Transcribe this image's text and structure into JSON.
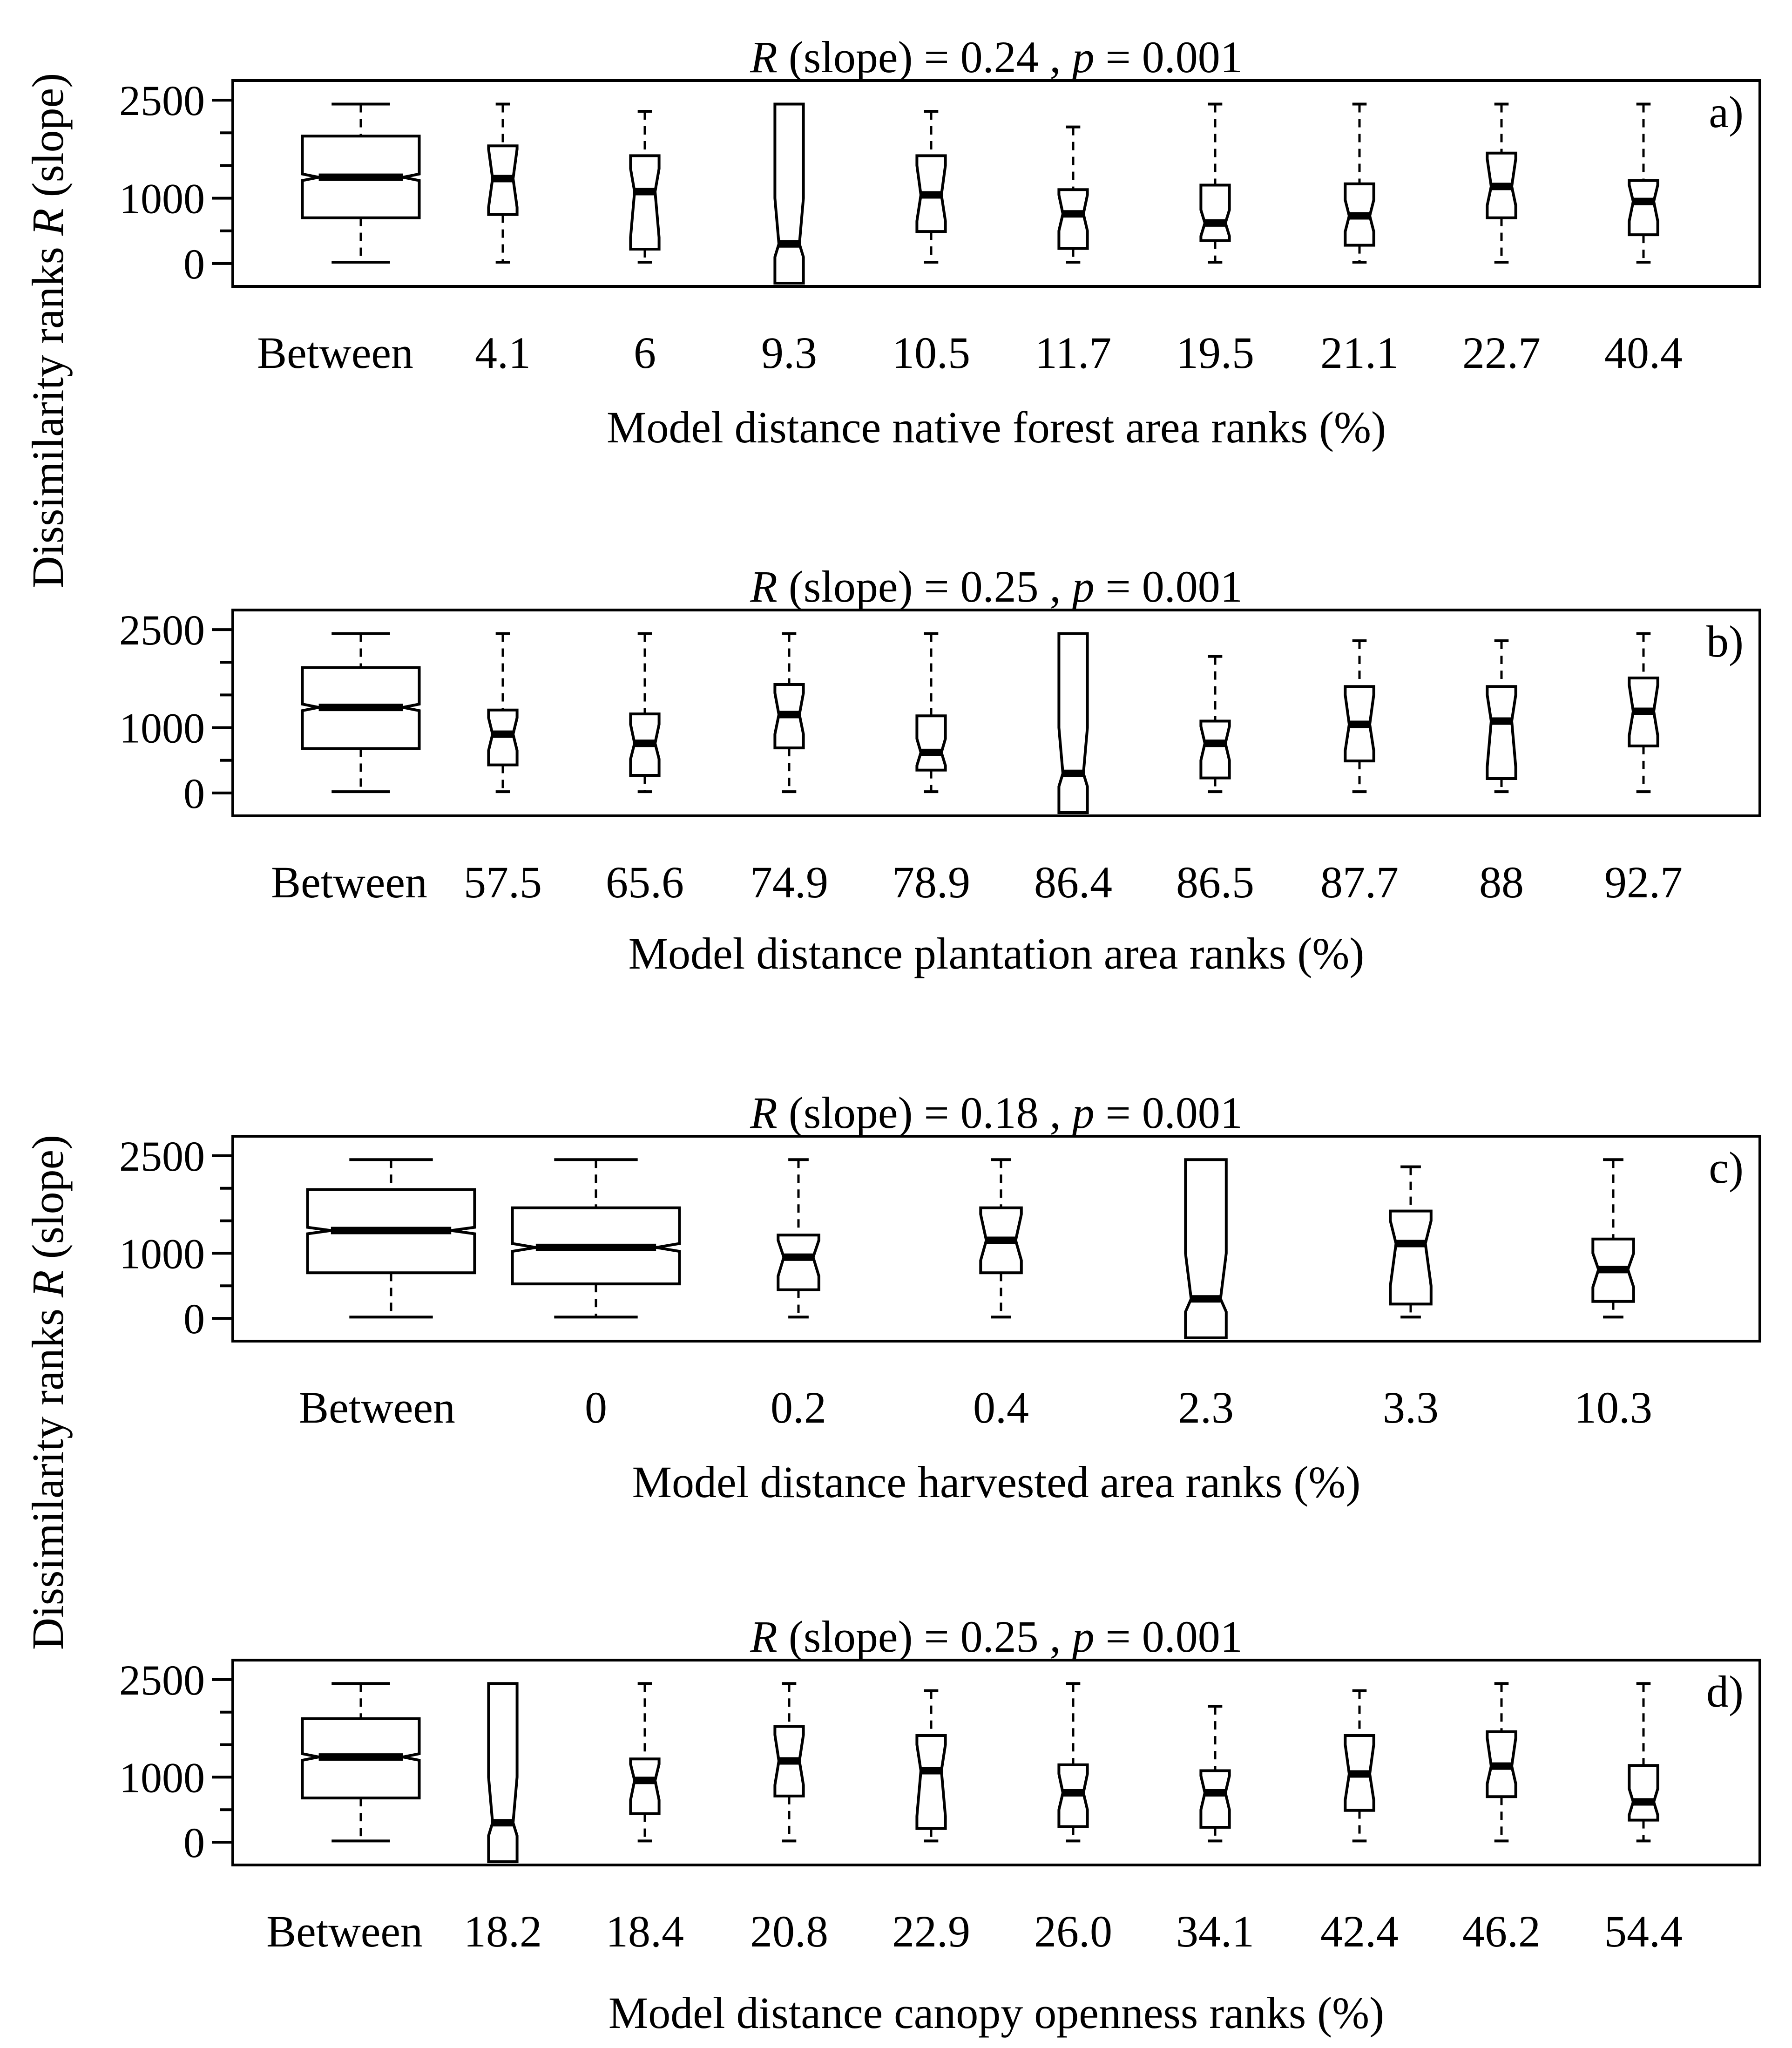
{
  "figure": {
    "ylabel_top_prefix": "Dissimilarity ranks ",
    "ylabel_top_italic": "R",
    "ylabel_top_suffix": " (slope)",
    "ylabel_bottom_prefix": "Dissimilarity ranks ",
    "ylabel_bottom_italic": "R",
    "ylabel_bottom_suffix": " (slope)"
  },
  "chart_data": [
    {
      "type": "box",
      "panel_label": "a)",
      "title_r": "R",
      "title_mid": " (slope) =  0.24 ,  ",
      "title_p": "p",
      "title_end": " =  0.001",
      "xlabel": "Model distance native forest area ranks (%)",
      "ylim": [
        -350,
        2800
      ],
      "yticks": [
        0,
        1000,
        2500
      ],
      "minor_yticks": [
        500,
        1500,
        2000
      ],
      "categories": [
        "Between",
        "4.1",
        "6",
        "9.3",
        "10.5",
        "11.7",
        "19.5",
        "21.1",
        "22.7",
        "40.4"
      ],
      "boxes": [
        {
          "min": 20,
          "q1": 700,
          "median": 1320,
          "q3": 1950,
          "max": 2440,
          "notch_lo": 1270,
          "notch_hi": 1370
        },
        {
          "min": 20,
          "q1": 750,
          "median": 1300,
          "q3": 1800,
          "max": 2440,
          "notch_lo": 860,
          "notch_hi": 1750
        },
        {
          "min": 20,
          "q1": 220,
          "median": 1100,
          "q3": 1650,
          "max": 2330,
          "notch_lo": 400,
          "notch_hi": 1450
        },
        {
          "min": -300,
          "q1": -300,
          "median": 300,
          "q3": 2440,
          "max": 2440,
          "notch_lo": 100,
          "notch_hi": 1000
        },
        {
          "min": 20,
          "q1": 490,
          "median": 1050,
          "q3": 1650,
          "max": 2330,
          "notch_lo": 650,
          "notch_hi": 1500
        },
        {
          "min": 20,
          "q1": 230,
          "median": 760,
          "q3": 1130,
          "max": 2090,
          "notch_lo": 500,
          "notch_hi": 1050
        },
        {
          "min": 20,
          "q1": 350,
          "median": 620,
          "q3": 1200,
          "max": 2440,
          "notch_lo": 420,
          "notch_hi": 820
        },
        {
          "min": 20,
          "q1": 280,
          "median": 730,
          "q3": 1220,
          "max": 2440,
          "notch_lo": 490,
          "notch_hi": 970
        },
        {
          "min": 20,
          "q1": 700,
          "median": 1180,
          "q3": 1690,
          "max": 2440,
          "notch_lo": 890,
          "notch_hi": 1600
        },
        {
          "min": 20,
          "q1": 440,
          "median": 950,
          "q3": 1270,
          "max": 2440,
          "notch_lo": 650,
          "notch_hi": 1200
        }
      ]
    },
    {
      "type": "box",
      "panel_label": "b)",
      "title_r": "R",
      "title_mid": " (slope) =  0.25 ,  ",
      "title_p": "p",
      "title_end": " =  0.001",
      "xlabel": "Model distance plantation area ranks (%)",
      "ylim": [
        -350,
        2800
      ],
      "yticks": [
        0,
        1000,
        2500
      ],
      "minor_yticks": [
        500,
        1500,
        2000
      ],
      "categories": [
        "Between",
        "57.5",
        "65.6",
        "74.9",
        "78.9",
        "86.4",
        "86.5",
        "87.7",
        "88",
        "92.7"
      ],
      "boxes": [
        {
          "min": 20,
          "q1": 680,
          "median": 1310,
          "q3": 1920,
          "max": 2440,
          "notch_lo": 1260,
          "notch_hi": 1360
        },
        {
          "min": 20,
          "q1": 430,
          "median": 900,
          "q3": 1270,
          "max": 2440,
          "notch_lo": 650,
          "notch_hi": 1150
        },
        {
          "min": 20,
          "q1": 270,
          "median": 760,
          "q3": 1210,
          "max": 2440,
          "notch_lo": 520,
          "notch_hi": 1050
        },
        {
          "min": 20,
          "q1": 690,
          "median": 1200,
          "q3": 1660,
          "max": 2440,
          "notch_lo": 900,
          "notch_hi": 1530
        },
        {
          "min": 20,
          "q1": 350,
          "median": 620,
          "q3": 1180,
          "max": 2440,
          "notch_lo": 420,
          "notch_hi": 830
        },
        {
          "min": -300,
          "q1": -300,
          "median": 300,
          "q3": 2440,
          "max": 2440,
          "notch_lo": 100,
          "notch_hi": 1000
        },
        {
          "min": 20,
          "q1": 230,
          "median": 760,
          "q3": 1100,
          "max": 2090,
          "notch_lo": 500,
          "notch_hi": 1020
        },
        {
          "min": 20,
          "q1": 490,
          "median": 1050,
          "q3": 1630,
          "max": 2330,
          "notch_lo": 650,
          "notch_hi": 1500
        },
        {
          "min": 20,
          "q1": 220,
          "median": 1100,
          "q3": 1630,
          "max": 2330,
          "notch_lo": 400,
          "notch_hi": 1500
        },
        {
          "min": 20,
          "q1": 720,
          "median": 1250,
          "q3": 1760,
          "max": 2440,
          "notch_lo": 880,
          "notch_hi": 1650
        }
      ]
    },
    {
      "type": "box",
      "panel_label": "c)",
      "title_r": "R",
      "title_mid": " (slope) =  0.18 ,  ",
      "title_p": "p",
      "title_end": " =  0.001",
      "xlabel": "Model distance harvested area ranks (%)",
      "ylim": [
        -350,
        2800
      ],
      "yticks": [
        0,
        1000,
        2500
      ],
      "minor_yticks": [
        500,
        1500,
        2000
      ],
      "categories": [
        "Between",
        "0",
        "0.2",
        "0.4",
        "2.3",
        "3.3",
        "10.3"
      ],
      "boxes": [
        {
          "min": 20,
          "q1": 700,
          "median": 1350,
          "q3": 1980,
          "max": 2440,
          "notch_lo": 1300,
          "notch_hi": 1400
        },
        {
          "min": 20,
          "q1": 530,
          "median": 1090,
          "q3": 1700,
          "max": 2440,
          "notch_lo": 1030,
          "notch_hi": 1150
        },
        {
          "min": 20,
          "q1": 440,
          "median": 940,
          "q3": 1280,
          "max": 2440,
          "notch_lo": 650,
          "notch_hi": 1200
        },
        {
          "min": 20,
          "q1": 700,
          "median": 1200,
          "q3": 1700,
          "max": 2440,
          "notch_lo": 890,
          "notch_hi": 1600
        },
        {
          "min": -300,
          "q1": -300,
          "median": 300,
          "q3": 2440,
          "max": 2440,
          "notch_lo": 100,
          "notch_hi": 1000
        },
        {
          "min": 20,
          "q1": 220,
          "median": 1150,
          "q3": 1650,
          "max": 2330,
          "notch_lo": 500,
          "notch_hi": 1500
        },
        {
          "min": 20,
          "q1": 260,
          "median": 750,
          "q3": 1220,
          "max": 2440,
          "notch_lo": 480,
          "notch_hi": 1000
        }
      ]
    },
    {
      "type": "box",
      "panel_label": "d)",
      "title_r": "R",
      "title_mid": " (slope) =  0.25 ,  ",
      "title_p": "p",
      "title_end": " =  0.001",
      "xlabel": "Model distance canopy openness ranks (%)",
      "ylim": [
        -350,
        2800
      ],
      "yticks": [
        0,
        1000,
        2500
      ],
      "minor_yticks": [
        500,
        1500,
        2000
      ],
      "categories": [
        "Between",
        "18.2",
        "18.4",
        "20.8",
        "22.9",
        "26.0",
        "34.1",
        "42.4",
        "46.2",
        "54.4"
      ],
      "boxes": [
        {
          "min": 20,
          "q1": 680,
          "median": 1310,
          "q3": 1900,
          "max": 2440,
          "notch_lo": 1260,
          "notch_hi": 1360
        },
        {
          "min": -300,
          "q1": -300,
          "median": 300,
          "q3": 2440,
          "max": 2440,
          "notch_lo": 100,
          "notch_hi": 1000
        },
        {
          "min": 20,
          "q1": 440,
          "median": 950,
          "q3": 1280,
          "max": 2440,
          "notch_lo": 650,
          "notch_hi": 1200
        },
        {
          "min": 20,
          "q1": 710,
          "median": 1250,
          "q3": 1780,
          "max": 2440,
          "notch_lo": 880,
          "notch_hi": 1650
        },
        {
          "min": 20,
          "q1": 210,
          "median": 1100,
          "q3": 1640,
          "max": 2330,
          "notch_lo": 400,
          "notch_hi": 1500
        },
        {
          "min": 20,
          "q1": 240,
          "median": 760,
          "q3": 1190,
          "max": 2440,
          "notch_lo": 500,
          "notch_hi": 1050
        },
        {
          "min": 20,
          "q1": 230,
          "median": 760,
          "q3": 1100,
          "max": 2090,
          "notch_lo": 500,
          "notch_hi": 1020
        },
        {
          "min": 20,
          "q1": 490,
          "median": 1050,
          "q3": 1640,
          "max": 2330,
          "notch_lo": 650,
          "notch_hi": 1500
        },
        {
          "min": 20,
          "q1": 700,
          "median": 1170,
          "q3": 1700,
          "max": 2440,
          "notch_lo": 900,
          "notch_hi": 1600
        },
        {
          "min": 20,
          "q1": 340,
          "median": 620,
          "q3": 1180,
          "max": 2440,
          "notch_lo": 420,
          "notch_hi": 820
        }
      ]
    }
  ]
}
